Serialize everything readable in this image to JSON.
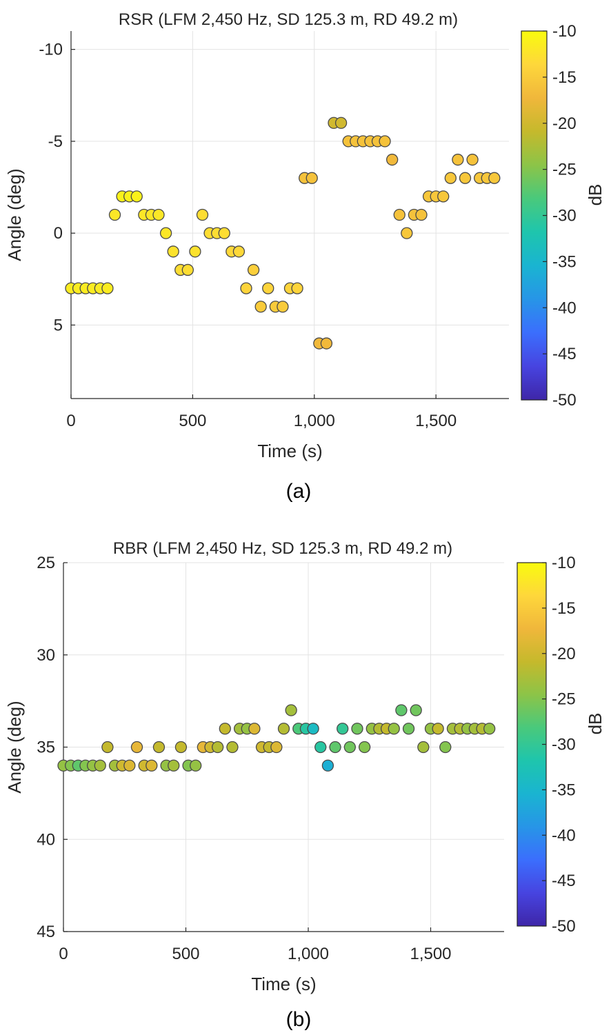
{
  "chart_data": [
    {
      "type": "scatter",
      "panel_label": "(a)",
      "title": "RSR (LFM 2,450 Hz, SD 125.3 m, RD 49.2 m)",
      "xlabel": "Time (s)",
      "ylabel": "Angle (deg)",
      "xlim": [
        0,
        1800
      ],
      "ylim": [
        -11,
        9
      ],
      "y_reversed": true,
      "xticks": [
        0,
        500,
        1000,
        1500
      ],
      "xtick_labels": [
        "0",
        "500",
        "1,000",
        "1,500"
      ],
      "yticks": [
        -10,
        -5,
        0,
        5
      ],
      "ytick_labels": [
        "-10",
        "-5",
        "0",
        "5"
      ],
      "grid": true,
      "colorbar": {
        "label": "dB",
        "range": [
          -50,
          -10
        ],
        "ticks": [
          -10,
          -15,
          -20,
          -25,
          -30,
          -35,
          -40,
          -45,
          -50
        ],
        "tick_labels": [
          "-10",
          "-15",
          "-20",
          "-25",
          "-30",
          "-35",
          "-40",
          "-45",
          "-50"
        ]
      },
      "colormap": [
        "#3e26a8",
        "#4744e0",
        "#3b6efd",
        "#2795e7",
        "#1ab4d1",
        "#1ec5ad",
        "#49c97c",
        "#8cc448",
        "#c5b92c",
        "#f0b73b",
        "#fed73b",
        "#f9fb0e"
      ],
      "points": [
        {
          "x": 0,
          "y": 3,
          "c": -11.5
        },
        {
          "x": 30,
          "y": 3,
          "c": -11.5
        },
        {
          "x": 60,
          "y": 3,
          "c": -11.5
        },
        {
          "x": 90,
          "y": 3,
          "c": -11.5
        },
        {
          "x": 120,
          "y": 3,
          "c": -11.5
        },
        {
          "x": 150,
          "y": 3,
          "c": -11.5
        },
        {
          "x": 180,
          "y": -1,
          "c": -12
        },
        {
          "x": 210,
          "y": -2,
          "c": -11
        },
        {
          "x": 240,
          "y": -2,
          "c": -11
        },
        {
          "x": 270,
          "y": -2,
          "c": -11
        },
        {
          "x": 300,
          "y": -1,
          "c": -12
        },
        {
          "x": 330,
          "y": -1,
          "c": -12
        },
        {
          "x": 360,
          "y": -1,
          "c": -12
        },
        {
          "x": 390,
          "y": 0,
          "c": -12
        },
        {
          "x": 420,
          "y": 1,
          "c": -12.5
        },
        {
          "x": 450,
          "y": 2,
          "c": -13
        },
        {
          "x": 480,
          "y": 2,
          "c": -13
        },
        {
          "x": 510,
          "y": 1,
          "c": -12.5
        },
        {
          "x": 540,
          "y": -1,
          "c": -13
        },
        {
          "x": 570,
          "y": 0,
          "c": -13
        },
        {
          "x": 600,
          "y": 0,
          "c": -13
        },
        {
          "x": 630,
          "y": 0,
          "c": -13
        },
        {
          "x": 660,
          "y": 1,
          "c": -13.5
        },
        {
          "x": 690,
          "y": 1,
          "c": -13.5
        },
        {
          "x": 720,
          "y": 3,
          "c": -14
        },
        {
          "x": 750,
          "y": 2,
          "c": -14.5
        },
        {
          "x": 780,
          "y": 4,
          "c": -15
        },
        {
          "x": 810,
          "y": 3,
          "c": -14
        },
        {
          "x": 840,
          "y": 4,
          "c": -15
        },
        {
          "x": 870,
          "y": 4,
          "c": -15
        },
        {
          "x": 900,
          "y": 3,
          "c": -14
        },
        {
          "x": 930,
          "y": 3,
          "c": -14
        },
        {
          "x": 960,
          "y": -3,
          "c": -16
        },
        {
          "x": 990,
          "y": -3,
          "c": -16
        },
        {
          "x": 1020,
          "y": 6,
          "c": -17
        },
        {
          "x": 1050,
          "y": 6,
          "c": -17
        },
        {
          "x": 1080,
          "y": -6,
          "c": -20
        },
        {
          "x": 1110,
          "y": -6,
          "c": -20
        },
        {
          "x": 1140,
          "y": -5,
          "c": -16
        },
        {
          "x": 1170,
          "y": -5,
          "c": -16
        },
        {
          "x": 1200,
          "y": -5,
          "c": -16
        },
        {
          "x": 1230,
          "y": -5,
          "c": -16
        },
        {
          "x": 1260,
          "y": -5,
          "c": -16
        },
        {
          "x": 1290,
          "y": -5,
          "c": -16
        },
        {
          "x": 1320,
          "y": -4,
          "c": -17
        },
        {
          "x": 1350,
          "y": -1,
          "c": -16
        },
        {
          "x": 1380,
          "y": 0,
          "c": -15.5
        },
        {
          "x": 1410,
          "y": -1,
          "c": -16
        },
        {
          "x": 1440,
          "y": -1,
          "c": -16
        },
        {
          "x": 1470,
          "y": -2,
          "c": -15.5
        },
        {
          "x": 1500,
          "y": -2,
          "c": -15.5
        },
        {
          "x": 1530,
          "y": -2,
          "c": -15.5
        },
        {
          "x": 1560,
          "y": -3,
          "c": -15.5
        },
        {
          "x": 1590,
          "y": -4,
          "c": -16
        },
        {
          "x": 1620,
          "y": -3,
          "c": -15.5
        },
        {
          "x": 1650,
          "y": -4,
          "c": -16
        },
        {
          "x": 1680,
          "y": -3,
          "c": -15.5
        },
        {
          "x": 1710,
          "y": -3,
          "c": -15.5
        },
        {
          "x": 1740,
          "y": -3,
          "c": -15.5
        }
      ]
    },
    {
      "type": "scatter",
      "panel_label": "(b)",
      "title": "RBR (LFM 2,450 Hz, SD 125.3 m, RD 49.2 m)",
      "xlabel": "Time (s)",
      "ylabel": "Angle (deg)",
      "xlim": [
        0,
        1800
      ],
      "ylim": [
        25,
        45
      ],
      "y_reversed": true,
      "xticks": [
        0,
        500,
        1000,
        1500
      ],
      "xtick_labels": [
        "0",
        "500",
        "1,000",
        "1,500"
      ],
      "yticks": [
        25,
        30,
        35,
        40,
        45
      ],
      "ytick_labels": [
        "25",
        "30",
        "35",
        "40",
        "45"
      ],
      "grid": true,
      "colorbar": {
        "label": "dB",
        "range": [
          -50,
          -10
        ],
        "ticks": [
          -10,
          -15,
          -20,
          -25,
          -30,
          -35,
          -40,
          -45,
          -50
        ],
        "tick_labels": [
          "-10",
          "-15",
          "-20",
          "-25",
          "-30",
          "-35",
          "-40",
          "-45",
          "-50"
        ]
      },
      "colormap": [
        "#3e26a8",
        "#4744e0",
        "#3b6efd",
        "#2795e7",
        "#1ab4d1",
        "#1ec5ad",
        "#49c97c",
        "#8cc448",
        "#c5b92c",
        "#f0b73b",
        "#fed73b",
        "#f9fb0e"
      ],
      "points": [
        {
          "x": 0,
          "y": 36,
          "c": -24
        },
        {
          "x": 30,
          "y": 36,
          "c": -25
        },
        {
          "x": 60,
          "y": 36,
          "c": -27
        },
        {
          "x": 90,
          "y": 36,
          "c": -25
        },
        {
          "x": 120,
          "y": 36,
          "c": -24
        },
        {
          "x": 150,
          "y": 36,
          "c": -23
        },
        {
          "x": 180,
          "y": 35,
          "c": -21
        },
        {
          "x": 210,
          "y": 36,
          "c": -23
        },
        {
          "x": 240,
          "y": 36,
          "c": -20
        },
        {
          "x": 270,
          "y": 36,
          "c": -19
        },
        {
          "x": 300,
          "y": 35,
          "c": -18
        },
        {
          "x": 330,
          "y": 36,
          "c": -20
        },
        {
          "x": 360,
          "y": 36,
          "c": -19
        },
        {
          "x": 390,
          "y": 35,
          "c": -21
        },
        {
          "x": 420,
          "y": 36,
          "c": -24
        },
        {
          "x": 450,
          "y": 36,
          "c": -23
        },
        {
          "x": 480,
          "y": 35,
          "c": -21
        },
        {
          "x": 510,
          "y": 36,
          "c": -25
        },
        {
          "x": 540,
          "y": 36,
          "c": -24
        },
        {
          "x": 570,
          "y": 35,
          "c": -18
        },
        {
          "x": 600,
          "y": 35,
          "c": -20
        },
        {
          "x": 630,
          "y": 35,
          "c": -22
        },
        {
          "x": 660,
          "y": 34,
          "c": -21
        },
        {
          "x": 690,
          "y": 35,
          "c": -22
        },
        {
          "x": 720,
          "y": 34,
          "c": -23
        },
        {
          "x": 750,
          "y": 34,
          "c": -24
        },
        {
          "x": 780,
          "y": 34,
          "c": -19
        },
        {
          "x": 810,
          "y": 35,
          "c": -20
        },
        {
          "x": 840,
          "y": 35,
          "c": -21
        },
        {
          "x": 870,
          "y": 35,
          "c": -19
        },
        {
          "x": 900,
          "y": 34,
          "c": -22
        },
        {
          "x": 930,
          "y": 33,
          "c": -23
        },
        {
          "x": 960,
          "y": 34,
          "c": -28
        },
        {
          "x": 990,
          "y": 34,
          "c": -31
        },
        {
          "x": 1020,
          "y": 34,
          "c": -34
        },
        {
          "x": 1050,
          "y": 35,
          "c": -31
        },
        {
          "x": 1080,
          "y": 36,
          "c": -36
        },
        {
          "x": 1110,
          "y": 35,
          "c": -27
        },
        {
          "x": 1140,
          "y": 34,
          "c": -30
        },
        {
          "x": 1170,
          "y": 35,
          "c": -26
        },
        {
          "x": 1200,
          "y": 34,
          "c": -26
        },
        {
          "x": 1230,
          "y": 35,
          "c": -25
        },
        {
          "x": 1260,
          "y": 34,
          "c": -24
        },
        {
          "x": 1290,
          "y": 34,
          "c": -22
        },
        {
          "x": 1320,
          "y": 34,
          "c": -21
        },
        {
          "x": 1350,
          "y": 34,
          "c": -24
        },
        {
          "x": 1380,
          "y": 33,
          "c": -27
        },
        {
          "x": 1410,
          "y": 34,
          "c": -26
        },
        {
          "x": 1440,
          "y": 33,
          "c": -26
        },
        {
          "x": 1470,
          "y": 35,
          "c": -23
        },
        {
          "x": 1500,
          "y": 34,
          "c": -24
        },
        {
          "x": 1530,
          "y": 34,
          "c": -21
        },
        {
          "x": 1560,
          "y": 35,
          "c": -25
        },
        {
          "x": 1590,
          "y": 34,
          "c": -23
        },
        {
          "x": 1620,
          "y": 34,
          "c": -22
        },
        {
          "x": 1650,
          "y": 34,
          "c": -24
        },
        {
          "x": 1680,
          "y": 34,
          "c": -23
        },
        {
          "x": 1710,
          "y": 34,
          "c": -22
        },
        {
          "x": 1740,
          "y": 34,
          "c": -24
        }
      ]
    }
  ]
}
